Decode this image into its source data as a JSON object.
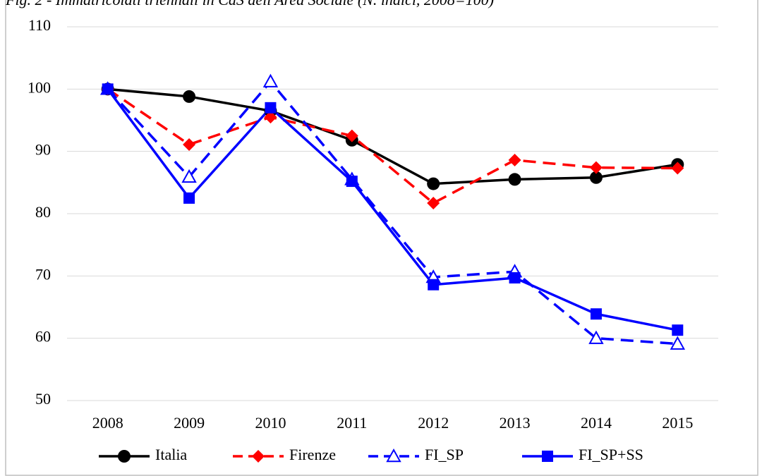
{
  "chart_data": {
    "type": "line",
    "title": "Fig. 2 - Immatricolati triennali in CdS dell'Area Sociale (N. indici, 2008=100)",
    "categories": [
      "2008",
      "2009",
      "2010",
      "2011",
      "2012",
      "2013",
      "2014",
      "2015"
    ],
    "series": [
      {
        "name": "Italia",
        "color": "#000000",
        "marker": "circle",
        "dashed": false,
        "values": [
          100,
          98.8,
          96.5,
          91.8,
          84.8,
          85.5,
          85.8,
          87.9
        ]
      },
      {
        "name": "Firenze",
        "color": "#ff0000",
        "marker": "diamond",
        "dashed": true,
        "values": [
          100,
          91.1,
          95.5,
          92.5,
          81.7,
          88.6,
          87.4,
          87.3
        ]
      },
      {
        "name": "FI_SP",
        "color": "#0000ff",
        "marker": "open-triangle",
        "dashed": true,
        "values": [
          100,
          85.9,
          101.2,
          85.5,
          69.8,
          70.7,
          60.0,
          59.1
        ]
      },
      {
        "name": "FI_SP+SS",
        "color": "#0000ff",
        "marker": "square",
        "dashed": false,
        "values": [
          100,
          82.5,
          97.0,
          85.2,
          68.6,
          69.7,
          63.9,
          61.3
        ]
      }
    ],
    "ylim": [
      50,
      110
    ],
    "yticks": [
      50,
      60,
      70,
      80,
      90,
      100,
      110
    ],
    "grid": true,
    "legend": "bottom"
  }
}
